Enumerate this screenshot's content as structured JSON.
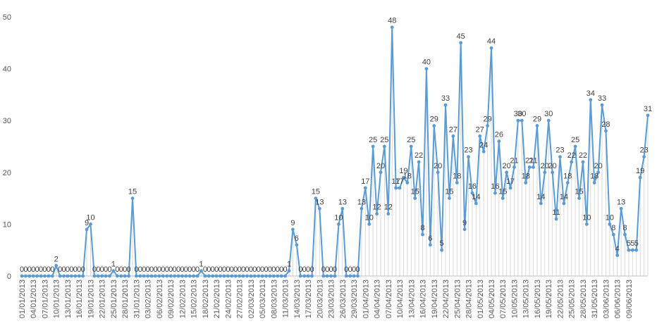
{
  "chart_data": {
    "type": "line",
    "title": "",
    "xlabel": "",
    "ylabel": "",
    "ylim": [
      0,
      50
    ],
    "yticks": [
      0,
      10,
      20,
      30,
      40,
      50
    ],
    "grid": false,
    "legend": "none",
    "colors": {
      "line": "#5b9bd5",
      "marker": "#5b9bd5",
      "drop_lines": "#d9d9d9",
      "axis": "#bfbfbf",
      "text": "#595959"
    },
    "tick_labels": [
      "01/01/2013",
      "04/01/2013",
      "07/01/2013",
      "10/01/2013",
      "13/01/2013",
      "16/01/2013",
      "19/01/2013",
      "22/01/2013",
      "25/01/2013",
      "28/01/2013",
      "31/01/2013",
      "03/02/2013",
      "06/02/2013",
      "09/02/2013",
      "12/02/2013",
      "15/02/2013",
      "18/02/2013",
      "21/02/2013",
      "24/02/2013",
      "27/02/2013",
      "02/03/2013",
      "05/03/2013",
      "08/03/2013",
      "11/03/2013",
      "14/03/2013",
      "17/03/2013",
      "20/03/2013",
      "23/03/2013",
      "26/03/2013",
      "29/03/2013",
      "01/04/2013",
      "04/04/2013",
      "07/04/2013",
      "10/04/2013",
      "13/04/2013",
      "16/04/2013",
      "19/04/2013",
      "22/04/2013",
      "25/04/2013",
      "28/04/2013",
      "01/05/2013",
      "04/05/2013",
      "07/05/2013",
      "10/05/2013",
      "13/05/2013",
      "16/05/2013",
      "19/05/2013",
      "22/05/2013",
      "25/05/2013",
      "28/05/2013",
      "31/05/2013",
      "03/06/2013",
      "06/06/2013",
      "09/06/2013"
    ],
    "series": [
      {
        "values": [
          0,
          0,
          0,
          0,
          0,
          0,
          0,
          0,
          0,
          2,
          0,
          0,
          0,
          0,
          0,
          0,
          0,
          9,
          10,
          0,
          0,
          0,
          0,
          0,
          1,
          0,
          0,
          0,
          0,
          15,
          0,
          0,
          0,
          0,
          0,
          0,
          0,
          0,
          0,
          0,
          0,
          0,
          0,
          0,
          0,
          0,
          0,
          1,
          0,
          0,
          0,
          0,
          0,
          0,
          0,
          0,
          0,
          0,
          0,
          0,
          0,
          0,
          0,
          0,
          0,
          0,
          0,
          0,
          0,
          0,
          1,
          9,
          6,
          0,
          0,
          0,
          0,
          15,
          13,
          0,
          0,
          0,
          0,
          10,
          13,
          0,
          0,
          0,
          0,
          13,
          17,
          10,
          25,
          12,
          20,
          25,
          12,
          48,
          17,
          17,
          19,
          18,
          25,
          15,
          22,
          8,
          40,
          6,
          29,
          20,
          5,
          33,
          15,
          27,
          18,
          45,
          9,
          23,
          16,
          14,
          27,
          24,
          29,
          44,
          16,
          26,
          15,
          20,
          17,
          21,
          30,
          30,
          18,
          21,
          21,
          29,
          14,
          20,
          30,
          20,
          11,
          23,
          14,
          18,
          22,
          25,
          15,
          22,
          10,
          34,
          18,
          20,
          33,
          28,
          10,
          8,
          4,
          13,
          8,
          5,
          5,
          5,
          19,
          23,
          31
        ]
      }
    ]
  }
}
